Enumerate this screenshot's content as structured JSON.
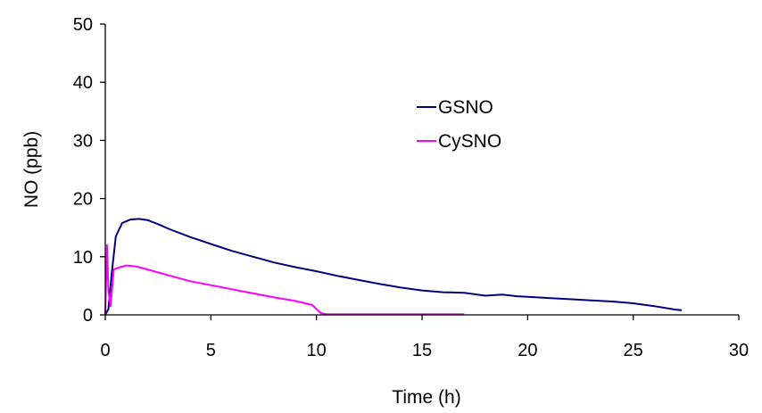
{
  "chart_data": {
    "type": "line",
    "title": "",
    "xlabel": "Time (h)",
    "ylabel": "NO (ppb)",
    "xlim": [
      0,
      30
    ],
    "ylim": [
      0,
      50
    ],
    "xticks": [
      0,
      5,
      10,
      15,
      20,
      25,
      30
    ],
    "yticks": [
      0,
      10,
      20,
      30,
      40,
      50
    ],
    "xtick_labels": [
      "0",
      "5",
      "10",
      "15",
      "20",
      "25",
      "30"
    ],
    "ytick_labels": [
      "0",
      "10",
      "20",
      "30",
      "40",
      "50"
    ],
    "grid": false,
    "legend_position": "upper-center",
    "series": [
      {
        "name": "GSNO",
        "color": "#000080",
        "x": [
          0,
          0.15,
          0.3,
          0.5,
          0.8,
          1.2,
          1.6,
          2.0,
          2.5,
          3,
          4,
          5,
          6,
          7,
          8,
          9,
          10,
          11,
          12,
          13,
          14,
          15,
          16,
          17,
          18,
          18.8,
          19.5,
          20,
          21,
          22,
          23,
          24,
          25,
          26,
          27,
          27.3
        ],
        "y": [
          0,
          1.0,
          7.0,
          13.5,
          15.8,
          16.4,
          16.5,
          16.3,
          15.6,
          14.8,
          13.4,
          12.2,
          11.0,
          10.0,
          9.0,
          8.2,
          7.5,
          6.7,
          6.0,
          5.3,
          4.7,
          4.2,
          3.9,
          3.8,
          3.3,
          3.5,
          3.2,
          3.1,
          2.9,
          2.7,
          2.5,
          2.3,
          2.0,
          1.5,
          0.9,
          0.8
        ]
      },
      {
        "name": "CySNO",
        "color": "#ff00ff",
        "x": [
          0,
          0.08,
          0.15,
          0.25,
          0.4,
          0.7,
          1.0,
          1.3,
          1.6,
          2.0,
          3,
          4,
          5,
          6,
          7,
          8,
          9,
          9.8,
          10.2,
          10.5,
          11,
          13,
          15,
          17
        ],
        "y": [
          0,
          12.0,
          4.0,
          1.5,
          7.8,
          8.2,
          8.5,
          8.4,
          8.2,
          7.8,
          6.8,
          5.8,
          5.1,
          4.4,
          3.7,
          3.0,
          2.4,
          1.7,
          0.3,
          0.1,
          0.1,
          0.1,
          0.1,
          0.1
        ]
      }
    ]
  }
}
